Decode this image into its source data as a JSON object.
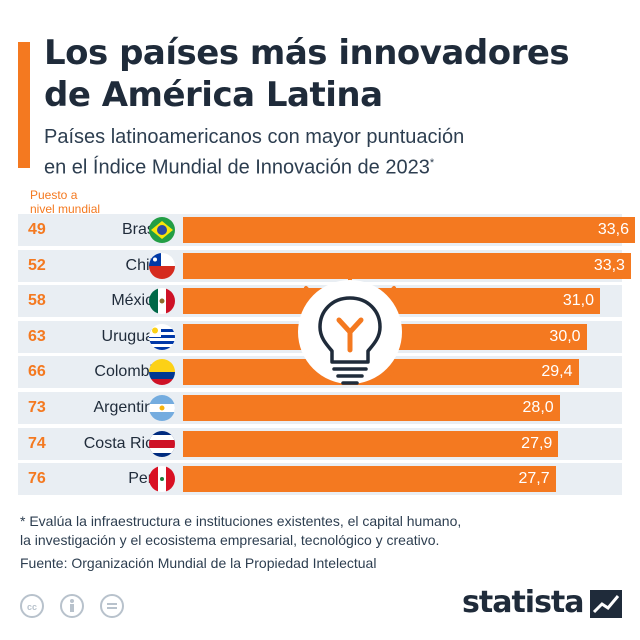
{
  "title": "Los países más innovadores\nde América Latina",
  "subtitle": "Países latinoamericanos con mayor puntuación\nen el Índice Mundial de Innovación de 2023",
  "subtitle_mark": "*",
  "rank_header": "Puesto a\nnivel mundial",
  "chart_data": {
    "type": "bar",
    "orientation": "horizontal",
    "categories": [
      "Brasil",
      "Chile",
      "México",
      "Uruguay",
      "Colombia",
      "Argentina",
      "Costa Rica",
      "Perú"
    ],
    "ranks": [
      "49",
      "52",
      "58",
      "63",
      "66",
      "73",
      "74",
      "76"
    ],
    "values": [
      33.6,
      33.3,
      31.0,
      30.0,
      29.4,
      28.0,
      27.9,
      27.7
    ],
    "value_labels": [
      "33,6",
      "33,3",
      "31,0",
      "30,0",
      "29,4",
      "28,0",
      "27,9",
      "27,7"
    ],
    "xlim": [
      0,
      33.6
    ],
    "grid": false,
    "legend": "none",
    "bar_color": "#f47920"
  },
  "footnote": "* Evalúa la infraestructura e instituciones existentes, el capital humano,\n   la investigación y el ecosistema empresarial, tecnológico y creativo.",
  "source": "Fuente: Organización Mundial de la Propiedad Intelectual",
  "brand": "statista",
  "license_icons": [
    "cc-icon",
    "attribution-icon",
    "no-derivatives-icon"
  ],
  "colors": {
    "accent": "#f47920",
    "text": "#1f2b3a",
    "row_bg": "#e9eef3",
    "bulb_bg": "#ffffff"
  }
}
